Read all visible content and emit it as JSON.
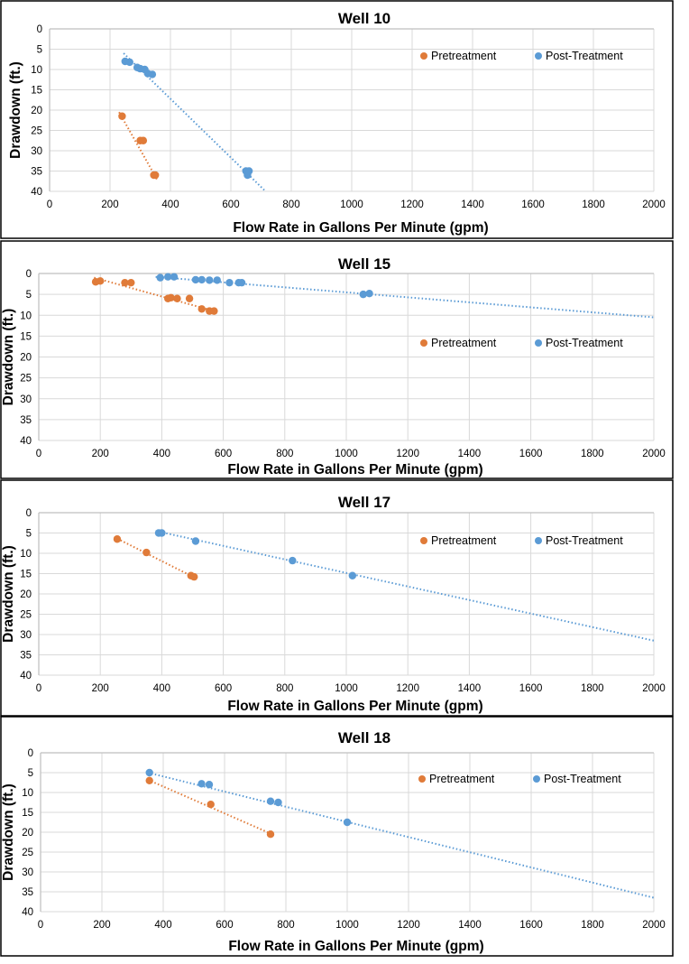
{
  "colors": {
    "pretreatment": "#E07B39",
    "post_treatment": "#5B9BD5",
    "grid": "#D9D9D9",
    "axis": "#BFBFBF",
    "frame": "#000000",
    "text": "#000000"
  },
  "chart_data": [
    {
      "type": "scatter",
      "title": "Well 10",
      "xlabel": "Flow Rate in Gallons Per Minute (gpm)",
      "ylabel": "Drawdown (ft.)",
      "xlim": [
        0,
        2000
      ],
      "ylim": [
        0,
        40
      ],
      "y_inverted": true,
      "x_ticks": [
        "0",
        "200",
        "400",
        "600",
        "800",
        "1000",
        "1200",
        "1400",
        "1600",
        "1800",
        "2000"
      ],
      "y_ticks": [
        "0",
        "5",
        "10",
        "15",
        "20",
        "25",
        "30",
        "35",
        "40"
      ],
      "legend": [
        "Pretreatment",
        "Post-Treatment"
      ],
      "legend_position": "top-right",
      "series": [
        {
          "name": "Pretreatment",
          "points": [
            [
              240,
              21.5
            ],
            [
              300,
              27.5
            ],
            [
              310,
              27.5
            ],
            [
              345,
              36
            ],
            [
              350,
              36
            ]
          ],
          "trendline": [
            [
              230,
              20.5
            ],
            [
              355,
              37
            ]
          ]
        },
        {
          "name": "Post-Treatment",
          "points": [
            [
              250,
              8
            ],
            [
              265,
              8.2
            ],
            [
              290,
              9.5
            ],
            [
              300,
              9.8
            ],
            [
              315,
              10
            ],
            [
              325,
              11
            ],
            [
              340,
              11.2
            ],
            [
              650,
              35
            ],
            [
              655,
              36
            ],
            [
              660,
              35
            ]
          ],
          "trendline": [
            [
              245,
              6
            ],
            [
              715,
              40
            ]
          ]
        }
      ]
    },
    {
      "type": "scatter",
      "title": "Well 15",
      "xlabel": "Flow Rate in Gallons Per Minute (gpm)",
      "ylabel": "Drawdown (ft.)",
      "xlim": [
        0,
        2000
      ],
      "ylim": [
        0,
        40
      ],
      "y_inverted": true,
      "x_ticks": [
        "0",
        "200",
        "400",
        "600",
        "800",
        "1000",
        "1200",
        "1400",
        "1600",
        "1800",
        "2000"
      ],
      "y_ticks": [
        "0",
        "5",
        "10",
        "15",
        "20",
        "25",
        "30",
        "35",
        "40"
      ],
      "legend": [
        "Pretreatment",
        "Post-Treatment"
      ],
      "legend_position": "center-right",
      "series": [
        {
          "name": "Pretreatment",
          "points": [
            [
              185,
              2
            ],
            [
              200,
              1.8
            ],
            [
              280,
              2.2
            ],
            [
              300,
              2.2
            ],
            [
              420,
              6
            ],
            [
              430,
              5.8
            ],
            [
              450,
              6
            ],
            [
              490,
              6
            ],
            [
              530,
              8.5
            ],
            [
              555,
              9
            ],
            [
              570,
              9
            ]
          ],
          "trendline": [
            [
              180,
              1
            ],
            [
              570,
              9
            ]
          ]
        },
        {
          "name": "Post-Treatment",
          "points": [
            [
              395,
              1
            ],
            [
              420,
              0.8
            ],
            [
              440,
              0.8
            ],
            [
              510,
              1.5
            ],
            [
              530,
              1.5
            ],
            [
              555,
              1.6
            ],
            [
              580,
              1.6
            ],
            [
              620,
              2.2
            ],
            [
              650,
              2.2
            ],
            [
              660,
              2.2
            ],
            [
              1055,
              5
            ],
            [
              1075,
              4.8
            ]
          ],
          "trendline": [
            [
              380,
              0.8
            ],
            [
              2000,
              10.5
            ]
          ]
        }
      ]
    },
    {
      "type": "scatter",
      "title": "Well 17",
      "xlabel": "Flow Rate in Gallons Per Minute (gpm)",
      "ylabel": "Drawdown (ft.)",
      "xlim": [
        0,
        2000
      ],
      "ylim": [
        0,
        40
      ],
      "y_inverted": true,
      "x_ticks": [
        "0",
        "200",
        "400",
        "600",
        "800",
        "1000",
        "1200",
        "1400",
        "1600",
        "1800",
        "2000"
      ],
      "y_ticks": [
        "0",
        "5",
        "10",
        "15",
        "20",
        "25",
        "30",
        "35",
        "40"
      ],
      "legend": [
        "Pretreatment",
        "Post-Treatment"
      ],
      "legend_position": "top-right",
      "series": [
        {
          "name": "Pretreatment",
          "points": [
            [
              255,
              6.5
            ],
            [
              350,
              9.8
            ],
            [
              495,
              15.5
            ],
            [
              505,
              15.8
            ]
          ],
          "trendline": [
            [
              245,
              6
            ],
            [
              515,
              16.3
            ]
          ]
        },
        {
          "name": "Post-Treatment",
          "points": [
            [
              390,
              5
            ],
            [
              400,
              5
            ],
            [
              510,
              7
            ],
            [
              825,
              11.8
            ],
            [
              1020,
              15.5
            ]
          ],
          "trendline": [
            [
              380,
              4.5
            ],
            [
              2000,
              31.5
            ]
          ]
        }
      ]
    },
    {
      "type": "scatter",
      "title": "Well 18",
      "xlabel": "Flow Rate in Gallons Per Minute (gpm)",
      "ylabel": "Drawdown (ft.)",
      "xlim": [
        0,
        2000
      ],
      "ylim": [
        0,
        40
      ],
      "y_inverted": true,
      "x_ticks": [
        "0",
        "200",
        "400",
        "600",
        "800",
        "1000",
        "1200",
        "1400",
        "1600",
        "1800",
        "2000"
      ],
      "y_ticks": [
        "0",
        "5",
        "10",
        "15",
        "20",
        "25",
        "30",
        "35",
        "40"
      ],
      "legend": [
        "Pretreatment",
        "Post-Treatment"
      ],
      "legend_position": "top-right",
      "series": [
        {
          "name": "Pretreatment",
          "points": [
            [
              355,
              7
            ],
            [
              555,
              13
            ],
            [
              750,
              20.5
            ]
          ],
          "trendline": [
            [
              350,
              6.8
            ],
            [
              755,
              20.5
            ]
          ]
        },
        {
          "name": "Post-Treatment",
          "points": [
            [
              355,
              5
            ],
            [
              525,
              7.8
            ],
            [
              550,
              8
            ],
            [
              750,
              12.2
            ],
            [
              775,
              12.5
            ],
            [
              1000,
              17.5
            ]
          ],
          "trendline": [
            [
              350,
              5
            ],
            [
              2000,
              36.5
            ]
          ]
        }
      ]
    }
  ]
}
